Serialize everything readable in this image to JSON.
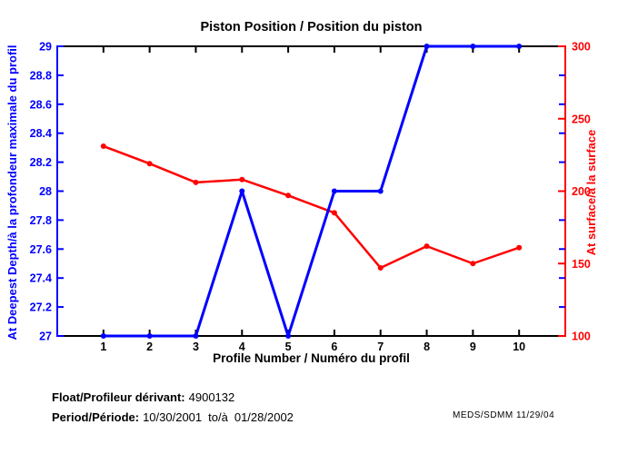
{
  "title": "Piston Position / Position du piston",
  "footer": {
    "float_label": "Float/Profileur dérivant:",
    "float_value": "4900132",
    "period_label": "Period/Période:",
    "period_start": "10/30/2001",
    "period_separator": "to/à",
    "period_end": "01/28/2002",
    "credit": "MEDS/SDMM  11/29/04"
  },
  "chart_data": {
    "type": "line",
    "title": "Piston Position / Position du piston",
    "xlabel": "Profile Number / Numéro du profil",
    "x": [
      1,
      2,
      3,
      4,
      5,
      6,
      7,
      8,
      9,
      10
    ],
    "x_tick_labels": [
      "1",
      "2",
      "3",
      "4",
      "5",
      "6",
      "7",
      "8",
      "9",
      "10"
    ],
    "xlim": [
      0,
      11
    ],
    "grid": false,
    "legend": "none",
    "left_axis": {
      "label": "At Deepest Depth/à la profondeur maximale du profil",
      "color": "#0000FF",
      "ylim": [
        27,
        29
      ],
      "ticks": [
        27,
        27.2,
        27.4,
        27.6,
        27.8,
        28,
        28.2,
        28.4,
        28.6,
        28.8,
        29
      ],
      "tick_labels": [
        "27",
        "27.2",
        "27.4",
        "27.6",
        "27.8",
        "28",
        "28.2",
        "28.4",
        "28.6",
        "28.8",
        "29"
      ]
    },
    "right_axis": {
      "label": "At surface/à la surface",
      "color": "#FF0000",
      "ylim": [
        100,
        300
      ],
      "ticks": [
        100,
        150,
        200,
        250,
        300
      ],
      "tick_labels": [
        "100",
        "150",
        "200",
        "250",
        "300"
      ]
    },
    "series": [
      {
        "name": "at-deepest-depth",
        "axis": "left",
        "color": "#0000FF",
        "values": [
          27,
          27,
          27,
          28,
          27,
          28,
          28,
          29,
          29,
          29
        ]
      },
      {
        "name": "at-surface",
        "axis": "right",
        "color": "#FF0000",
        "values": [
          231,
          219,
          206,
          208,
          197,
          185,
          147,
          162,
          150,
          161
        ]
      }
    ]
  }
}
